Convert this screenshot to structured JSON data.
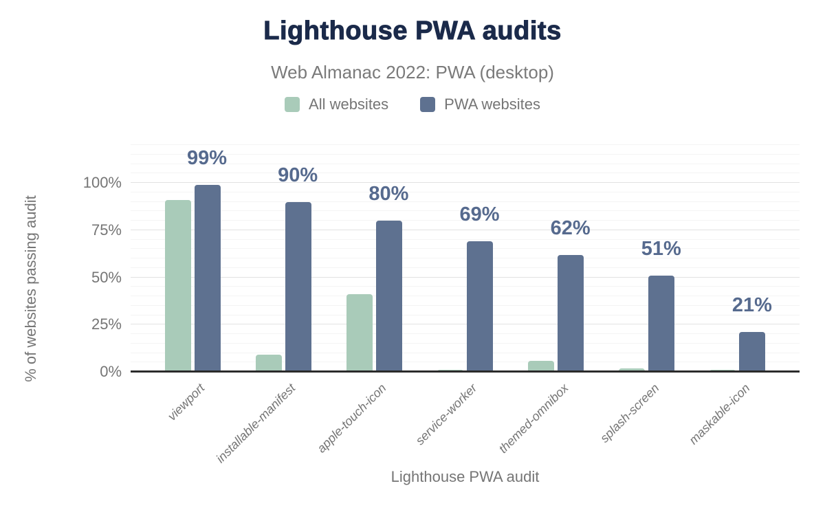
{
  "chart_data": {
    "type": "bar",
    "title": "Lighthouse PWA audits",
    "subtitle": "Web Almanac 2022: PWA (desktop)",
    "xlabel": "Lighthouse PWA audit",
    "ylabel": "% of websites passing audit",
    "categories": [
      "viewport",
      "installable-manifest",
      "apple-touch-icon",
      "service-worker",
      "themed-omnibox",
      "splash-screen",
      "maskable-icon"
    ],
    "series": [
      {
        "name": "All websites",
        "values": [
          91,
          9,
          41,
          1,
          6,
          2,
          1
        ],
        "labels": [
          "",
          "",
          "",
          "",
          "",
          "",
          ""
        ]
      },
      {
        "name": "PWA websites",
        "values": [
          99,
          90,
          80,
          69,
          62,
          51,
          21
        ],
        "labels": [
          "99%",
          "90%",
          "80%",
          "69%",
          "62%",
          "51%",
          "21%"
        ]
      }
    ],
    "ylim": [
      0,
      120
    ],
    "yticks": [
      {
        "label": "0%",
        "value": 0
      },
      {
        "label": "25%",
        "value": 25
      },
      {
        "label": "50%",
        "value": 50
      },
      {
        "label": "75%",
        "value": 75
      },
      {
        "label": "100%",
        "value": 100
      }
    ],
    "grid": "on",
    "legend_position": "top"
  },
  "colors": {
    "background": "#ffffff",
    "title": "#1b2a4a",
    "subtitle": "#7a7a7a",
    "axis_text": "#757575",
    "all_websites": "#a9cbb9",
    "pwa_websites": "#5e7190",
    "value_label": "#566a8e",
    "gridline_minor": "#f4f4f4",
    "gridline_major": "#e2e2e2",
    "baseline": "#2b2b2b"
  }
}
